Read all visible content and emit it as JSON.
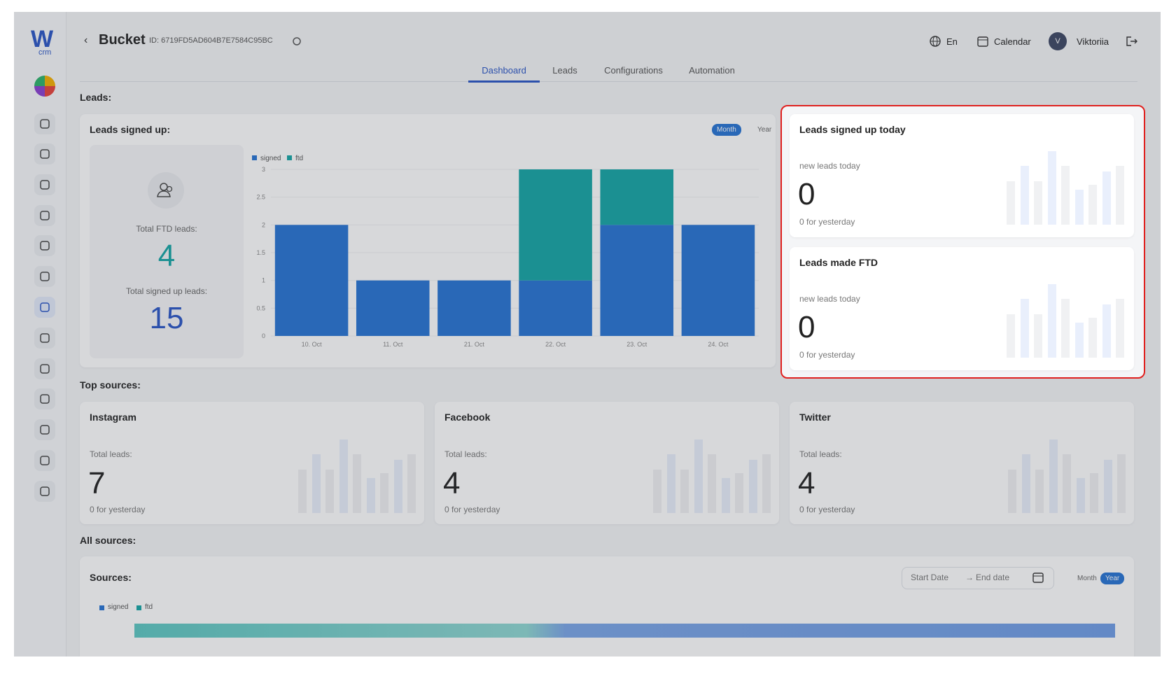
{
  "logo": {
    "mark": "W",
    "sub": "crm"
  },
  "header": {
    "title": "Bucket",
    "id": "ID: 6719FD5AD604B7E7584C95BC",
    "language": "En",
    "calendar": "Calendar",
    "avatar": "V",
    "user": "Viktoriia"
  },
  "tabs": [
    "Dashboard",
    "Leads",
    "Configurations",
    "Automation"
  ],
  "sections": {
    "leads": "Leads:",
    "top_sources": "Top sources:",
    "all_sources": "All sources:"
  },
  "chart_data": {
    "type": "bar",
    "stacked": true,
    "title": "Leads signed up:",
    "toggle": [
      "Month",
      "Year"
    ],
    "categories": [
      "10. Oct",
      "11. Oct",
      "21. Oct",
      "22. Oct",
      "23. Oct",
      "24. Oct"
    ],
    "series": [
      {
        "name": "signed",
        "color": "#2673d4",
        "values": [
          2,
          1,
          1,
          1,
          2,
          2
        ]
      },
      {
        "name": "ftd",
        "color": "#14a6a6",
        "values": [
          0,
          0,
          0,
          2,
          1,
          0
        ]
      }
    ],
    "ylim": [
      0,
      3
    ],
    "yticks": [
      0,
      0.5,
      1,
      1.5,
      2,
      2.5,
      3
    ],
    "grid": true,
    "legend": "top-left"
  },
  "totals": {
    "ftd_label": "Total FTD leads:",
    "ftd": 4,
    "signed_label": "Total signed up leads:",
    "signed": 15
  },
  "today_cards": [
    {
      "title": "Leads signed up today",
      "label": "new leads today",
      "value": 0,
      "note": "0 for yesterday"
    },
    {
      "title": "Leads made FTD",
      "label": "new leads today",
      "value": 0,
      "note": "0 for yesterday"
    }
  ],
  "source_cards": [
    {
      "title": "Instagram",
      "label": "Total leads:",
      "value": 7,
      "note": "0 for yesterday"
    },
    {
      "title": "Facebook",
      "label": "Total leads:",
      "value": 4,
      "note": "0 for yesterday"
    },
    {
      "title": "Twitter",
      "label": "Total leads:",
      "value": 4,
      "note": "0 for yesterday"
    }
  ],
  "sources": {
    "title": "Sources:",
    "start": "Start Date",
    "end": "End date",
    "toggle": [
      "Month",
      "Year"
    ],
    "legend": [
      "signed",
      "ftd"
    ]
  }
}
